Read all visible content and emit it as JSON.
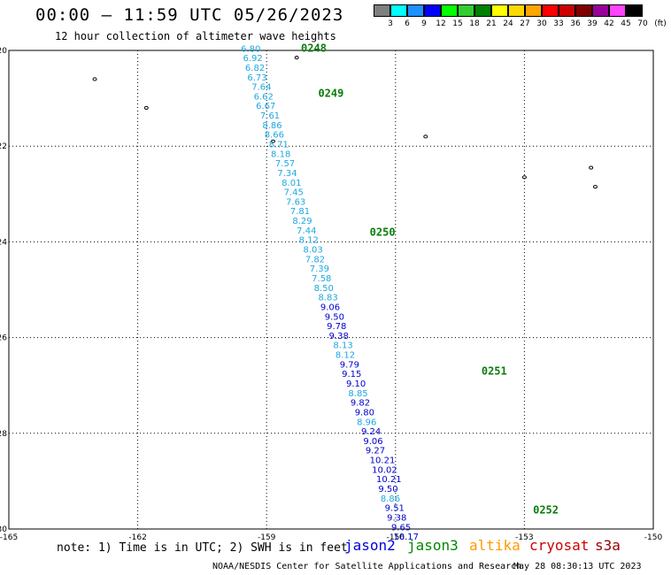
{
  "header": {
    "title": "00:00 – 11:59 UTC 05/26/2023",
    "subtitle": "12 hour collection of altimeter wave heights"
  },
  "legend": {
    "unit": "(ft)",
    "bins": [
      {
        "label": "3",
        "color": "#7f7f7f"
      },
      {
        "label": "6",
        "color": "#00ffff"
      },
      {
        "label": "9",
        "color": "#1e90ff"
      },
      {
        "label": "12",
        "color": "#0000ff"
      },
      {
        "label": "15",
        "color": "#00ff00"
      },
      {
        "label": "18",
        "color": "#32cd32"
      },
      {
        "label": "21",
        "color": "#008000"
      },
      {
        "label": "24",
        "color": "#ffff00"
      },
      {
        "label": "27",
        "color": "#ffd700"
      },
      {
        "label": "30",
        "color": "#ffa500"
      },
      {
        "label": "33",
        "color": "#ff0000"
      },
      {
        "label": "36",
        "color": "#cc0000"
      },
      {
        "label": "39",
        "color": "#800000"
      },
      {
        "label": "42",
        "color": "#990099"
      },
      {
        "label": "45",
        "color": "#ff44ff"
      },
      {
        "label": "70",
        "color": "#000000"
      }
    ]
  },
  "chart_data": {
    "type": "scatter",
    "xlim": [
      -165,
      -150
    ],
    "ylim": [
      -30,
      -20
    ],
    "x_ticks": [
      "-165",
      "-162",
      "-159",
      "-156",
      "-153",
      "-150"
    ],
    "y_ticks": [
      "-20",
      "-22",
      "-24",
      "-26",
      "-28",
      "-30"
    ],
    "grid": true,
    "pass_labels": [
      {
        "text": "0248",
        "lon": -158.2,
        "lat": -19.95
      },
      {
        "text": "0249",
        "lon": -157.8,
        "lat": -20.9
      },
      {
        "text": "0250",
        "lon": -156.6,
        "lat": -23.8
      },
      {
        "text": "0251",
        "lon": -154.0,
        "lat": -26.7
      },
      {
        "text": "0252",
        "lon": -152.8,
        "lat": -29.6
      }
    ],
    "points": [
      {
        "lon": -159.6,
        "lat": -19.95,
        "swh": "6.80",
        "color": "#1ea7e0"
      },
      {
        "lon": -159.55,
        "lat": -20.15,
        "swh": "6.92",
        "color": "#1ea7e0"
      },
      {
        "lon": -159.5,
        "lat": -20.35,
        "swh": "6.82",
        "color": "#1ea7e0"
      },
      {
        "lon": -159.45,
        "lat": -20.55,
        "swh": "6.73",
        "color": "#1ea7e0"
      },
      {
        "lon": -159.35,
        "lat": -20.75,
        "swh": "7.64",
        "color": "#1ea7e0"
      },
      {
        "lon": -159.3,
        "lat": -20.95,
        "swh": "6.62",
        "color": "#1ea7e0"
      },
      {
        "lon": -159.25,
        "lat": -21.15,
        "swh": "6.67",
        "color": "#1ea7e0"
      },
      {
        "lon": -159.15,
        "lat": -21.35,
        "swh": "7.61",
        "color": "#1ea7e0"
      },
      {
        "lon": -159.1,
        "lat": -21.55,
        "swh": "8.86",
        "color": "#1ea7e0"
      },
      {
        "lon": -159.05,
        "lat": -21.75,
        "swh": "8.66",
        "color": "#1ea7e0"
      },
      {
        "lon": -158.95,
        "lat": -21.95,
        "swh": "8.71",
        "color": "#1ea7e0"
      },
      {
        "lon": -158.9,
        "lat": -22.15,
        "swh": "8.18",
        "color": "#1ea7e0"
      },
      {
        "lon": -158.8,
        "lat": -22.35,
        "swh": "7.57",
        "color": "#1ea7e0"
      },
      {
        "lon": -158.75,
        "lat": -22.55,
        "swh": "7.34",
        "color": "#1ea7e0"
      },
      {
        "lon": -158.65,
        "lat": -22.75,
        "swh": "8.01",
        "color": "#1ea7e0"
      },
      {
        "lon": -158.6,
        "lat": -22.95,
        "swh": "7.45",
        "color": "#1ea7e0"
      },
      {
        "lon": -158.55,
        "lat": -23.15,
        "swh": "7.63",
        "color": "#1ea7e0"
      },
      {
        "lon": -158.45,
        "lat": -23.35,
        "swh": "7.81",
        "color": "#1ea7e0"
      },
      {
        "lon": -158.4,
        "lat": -23.55,
        "swh": "8.29",
        "color": "#1ea7e0"
      },
      {
        "lon": -158.3,
        "lat": -23.75,
        "swh": "7.44",
        "color": "#1ea7e0"
      },
      {
        "lon": -158.25,
        "lat": -23.95,
        "swh": "8.12",
        "color": "#1ea7e0"
      },
      {
        "lon": -158.15,
        "lat": -24.15,
        "swh": "8.03",
        "color": "#1ea7e0"
      },
      {
        "lon": -158.1,
        "lat": -24.35,
        "swh": "7.82",
        "color": "#1ea7e0"
      },
      {
        "lon": -158.0,
        "lat": -24.55,
        "swh": "7.39",
        "color": "#1ea7e0"
      },
      {
        "lon": -157.95,
        "lat": -24.75,
        "swh": "7.58",
        "color": "#1ea7e0"
      },
      {
        "lon": -157.9,
        "lat": -24.95,
        "swh": "8.50",
        "color": "#1ea7e0"
      },
      {
        "lon": -157.8,
        "lat": -25.15,
        "swh": "8.83",
        "color": "#1ea7e0"
      },
      {
        "lon": -157.75,
        "lat": -25.35,
        "swh": "9.06",
        "color": "#0000cc"
      },
      {
        "lon": -157.65,
        "lat": -25.55,
        "swh": "9.50",
        "color": "#0000cc"
      },
      {
        "lon": -157.6,
        "lat": -25.75,
        "swh": "9.78",
        "color": "#0000cc"
      },
      {
        "lon": -157.55,
        "lat": -25.95,
        "swh": "9.38",
        "color": "#0000cc"
      },
      {
        "lon": -157.45,
        "lat": -26.15,
        "swh": "8.13",
        "color": "#1ea7e0"
      },
      {
        "lon": -157.4,
        "lat": -26.35,
        "swh": "8.12",
        "color": "#1ea7e0"
      },
      {
        "lon": -157.3,
        "lat": -26.55,
        "swh": "9.79",
        "color": "#0000cc"
      },
      {
        "lon": -157.25,
        "lat": -26.75,
        "swh": "9.15",
        "color": "#0000cc"
      },
      {
        "lon": -157.15,
        "lat": -26.95,
        "swh": "9.10",
        "color": "#0000cc"
      },
      {
        "lon": -157.1,
        "lat": -27.15,
        "swh": "8.85",
        "color": "#1ea7e0"
      },
      {
        "lon": -157.05,
        "lat": -27.35,
        "swh": "9.82",
        "color": "#0000cc"
      },
      {
        "lon": -156.95,
        "lat": -27.55,
        "swh": "9.80",
        "color": "#0000cc"
      },
      {
        "lon": -156.9,
        "lat": -27.75,
        "swh": "8.96",
        "color": "#1ea7e0"
      },
      {
        "lon": -156.8,
        "lat": -27.95,
        "swh": "9.24",
        "color": "#0000cc"
      },
      {
        "lon": -156.75,
        "lat": -28.15,
        "swh": "9.06",
        "color": "#0000cc"
      },
      {
        "lon": -156.7,
        "lat": -28.35,
        "swh": "9.27",
        "color": "#0000cc"
      },
      {
        "lon": -156.6,
        "lat": -28.55,
        "swh": "10.21",
        "color": "#0000cc"
      },
      {
        "lon": -156.55,
        "lat": -28.75,
        "swh": "10.02",
        "color": "#0000cc"
      },
      {
        "lon": -156.45,
        "lat": -28.95,
        "swh": "10.21",
        "color": "#0000cc"
      },
      {
        "lon": -156.4,
        "lat": -29.15,
        "swh": "9.50",
        "color": "#0000cc"
      },
      {
        "lon": -156.35,
        "lat": -29.35,
        "swh": "8.86",
        "color": "#1ea7e0"
      },
      {
        "lon": -156.25,
        "lat": -29.55,
        "swh": "9.51",
        "color": "#0000cc"
      },
      {
        "lon": -156.2,
        "lat": -29.75,
        "swh": "9.38",
        "color": "#0000cc"
      },
      {
        "lon": -156.1,
        "lat": -29.95,
        "swh": "9.65",
        "color": "#0000cc"
      },
      {
        "lon": -156.05,
        "lat": -30.15,
        "swh": "10.17",
        "color": "#0000cc"
      }
    ],
    "islands": [
      {
        "lon": -163.0,
        "lat": -20.6
      },
      {
        "lon": -161.8,
        "lat": -21.2
      },
      {
        "lon": -158.3,
        "lat": -20.15
      },
      {
        "lon": -158.85,
        "lat": -21.9
      },
      {
        "lon": -155.3,
        "lat": -21.8
      },
      {
        "lon": -153.0,
        "lat": -22.65
      },
      {
        "lon": -151.45,
        "lat": -22.45
      },
      {
        "lon": -151.35,
        "lat": -22.85
      }
    ]
  },
  "footer": {
    "note": "note: 1) Time is in UTC; 2) SWH is in feet",
    "satellites": [
      {
        "name": "jason2",
        "color": "#0000dd"
      },
      {
        "name": "jason3",
        "color": "#008800"
      },
      {
        "name": "altika",
        "color": "#ff9900"
      },
      {
        "name": "cryosat",
        "color": "#cc0000"
      },
      {
        "name": "s3a",
        "color": "#990000"
      }
    ],
    "credit": "NOAA/NESDIS Center for Satellite Applications and Research",
    "timestamp": "May 28 08:30:13 UTC 2023"
  }
}
